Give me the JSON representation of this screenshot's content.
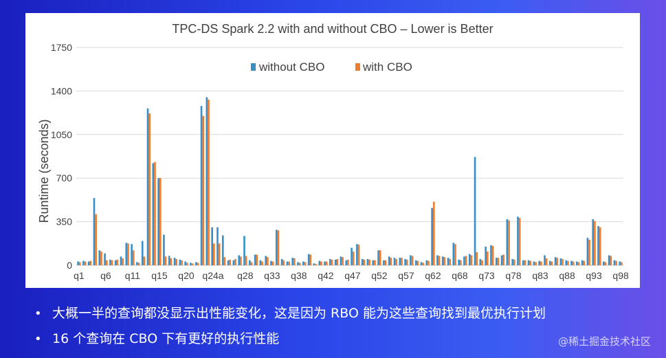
{
  "chart_data": {
    "type": "bar",
    "title": "TPC-DS Spark 2.2 with and without CBO – Lower is Better",
    "ylabel": "Runtime (seconds)",
    "xlabel": "",
    "ylim": [
      0,
      1750
    ],
    "yticks": [
      "0",
      "350",
      "700",
      "1050",
      "1400",
      "1750"
    ],
    "grid": true,
    "legend_position": "top-center",
    "x_tick_labels": [
      "q1",
      "q6",
      "q11",
      "q15",
      "q20",
      "q24a",
      "q28",
      "q33",
      "q38",
      "q42",
      "q47",
      "q52",
      "q57",
      "q62",
      "q68",
      "q73",
      "q78",
      "q83",
      "q88",
      "q93",
      "q98"
    ],
    "x_tick_positions": [
      0,
      5,
      10,
      15,
      20,
      25,
      31,
      36,
      41,
      46,
      51,
      56,
      61,
      66,
      71,
      76,
      81,
      86,
      91,
      96,
      101
    ],
    "colors": {
      "without": "#3a8fc7",
      "with": "#ed7d31"
    },
    "series": [
      {
        "name": "without CBO",
        "values": [
          30,
          35,
          30,
          540,
          120,
          95,
          45,
          40,
          70,
          180,
          170,
          25,
          195,
          1260,
          820,
          700,
          245,
          75,
          60,
          45,
          30,
          20,
          25,
          1280,
          1350,
          305,
          305,
          240,
          40,
          40,
          80,
          235,
          40,
          85,
          40,
          75,
          35,
          285,
          50,
          30,
          60,
          25,
          30,
          90,
          15,
          35,
          30,
          50,
          45,
          70,
          40,
          140,
          170,
          50,
          50,
          40,
          120,
          40,
          70,
          60,
          60,
          50,
          80,
          40,
          25,
          40,
          460,
          80,
          70,
          60,
          180,
          45,
          70,
          90,
          870,
          50,
          150,
          160,
          60,
          80,
          370,
          50,
          390,
          40,
          40,
          30,
          35,
          80,
          35,
          65,
          55,
          40,
          35,
          30,
          40,
          220,
          370,
          315,
          30,
          80,
          40,
          30
        ],
        "with_values_note": ""
      },
      {
        "name": "with CBO",
        "values": [
          25,
          30,
          35,
          410,
          110,
          40,
          40,
          45,
          55,
          175,
          120,
          20,
          70,
          1220,
          830,
          700,
          70,
          55,
          50,
          40,
          20,
          15,
          20,
          1200,
          1330,
          175,
          175,
          65,
          45,
          50,
          70,
          75,
          25,
          85,
          30,
          65,
          30,
          280,
          40,
          30,
          55,
          20,
          25,
          85,
          10,
          30,
          30,
          45,
          50,
          65,
          45,
          110,
          165,
          45,
          45,
          40,
          120,
          40,
          60,
          50,
          60,
          45,
          75,
          35,
          20,
          35,
          510,
          75,
          65,
          50,
          170,
          40,
          75,
          80,
          105,
          40,
          110,
          155,
          60,
          85,
          360,
          45,
          380,
          40,
          35,
          25,
          30,
          55,
          30,
          60,
          50,
          35,
          30,
          25,
          35,
          205,
          355,
          305,
          25,
          75,
          35,
          25
        ]
      }
    ]
  },
  "bullets": [
    "大概一半的查询都没显示出性能变化，这是因为 RBO 能为这些查询找到最优执行计划",
    "16 个查询在 CBO 下有更好的执行性能"
  ],
  "bullet_marker": "•",
  "watermark": "@稀土掘金技术社区"
}
